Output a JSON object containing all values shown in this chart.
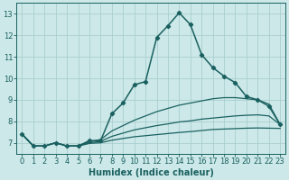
{
  "title": "",
  "xlabel": "Humidex (Indice chaleur)",
  "background_color": "#cce8e8",
  "grid_color": "#aacece",
  "line_color": "#1a6060",
  "xlim": [
    -0.5,
    23.5
  ],
  "ylim": [
    6.5,
    13.5
  ],
  "xticks": [
    0,
    1,
    2,
    3,
    4,
    5,
    6,
    7,
    8,
    9,
    10,
    11,
    12,
    13,
    14,
    15,
    16,
    17,
    18,
    19,
    20,
    21,
    22,
    23
  ],
  "yticks": [
    7,
    8,
    9,
    10,
    11,
    12,
    13
  ],
  "lines": [
    {
      "x": [
        0,
        1,
        2,
        3,
        4,
        5,
        6,
        7,
        8,
        9,
        10,
        11,
        12,
        13,
        14,
        15,
        16,
        17,
        18,
        19,
        20,
        21,
        22,
        23
      ],
      "y": [
        7.4,
        6.85,
        6.85,
        7.0,
        6.85,
        6.85,
        7.1,
        7.1,
        8.35,
        8.85,
        9.7,
        9.85,
        11.9,
        12.45,
        13.05,
        12.5,
        11.1,
        10.5,
        10.1,
        9.8,
        9.15,
        9.0,
        8.7,
        7.85
      ],
      "marker": true,
      "linewidth": 1.1
    },
    {
      "x": [
        0,
        1,
        2,
        3,
        4,
        5,
        6,
        7,
        8,
        9,
        10,
        11,
        12,
        13,
        14,
        15,
        16,
        17,
        18,
        19,
        20,
        21,
        22,
        23
      ],
      "y": [
        7.4,
        6.85,
        6.85,
        7.0,
        6.85,
        6.85,
        7.05,
        7.15,
        7.55,
        7.8,
        8.05,
        8.25,
        8.45,
        8.6,
        8.75,
        8.85,
        8.95,
        9.05,
        9.1,
        9.1,
        9.05,
        9.0,
        8.8,
        7.85
      ],
      "marker": false,
      "linewidth": 0.9
    },
    {
      "x": [
        0,
        1,
        2,
        3,
        4,
        5,
        6,
        7,
        8,
        9,
        10,
        11,
        12,
        13,
        14,
        15,
        16,
        17,
        18,
        19,
        20,
        21,
        22,
        23
      ],
      "y": [
        7.4,
        6.85,
        6.85,
        7.0,
        6.85,
        6.85,
        7.0,
        7.07,
        7.3,
        7.45,
        7.6,
        7.7,
        7.8,
        7.88,
        7.97,
        8.02,
        8.1,
        8.15,
        8.2,
        8.25,
        8.28,
        8.3,
        8.25,
        7.85
      ],
      "marker": false,
      "linewidth": 0.9
    },
    {
      "x": [
        0,
        1,
        2,
        3,
        4,
        5,
        6,
        7,
        8,
        9,
        10,
        11,
        12,
        13,
        14,
        15,
        16,
        17,
        18,
        19,
        20,
        21,
        22,
        23
      ],
      "y": [
        7.4,
        6.85,
        6.85,
        7.0,
        6.85,
        6.85,
        6.97,
        7.0,
        7.12,
        7.2,
        7.28,
        7.33,
        7.38,
        7.43,
        7.48,
        7.52,
        7.57,
        7.62,
        7.64,
        7.66,
        7.68,
        7.69,
        7.68,
        7.67
      ],
      "marker": false,
      "linewidth": 0.9
    }
  ],
  "xlabel_fontsize": 7,
  "tick_fontsize": 6
}
